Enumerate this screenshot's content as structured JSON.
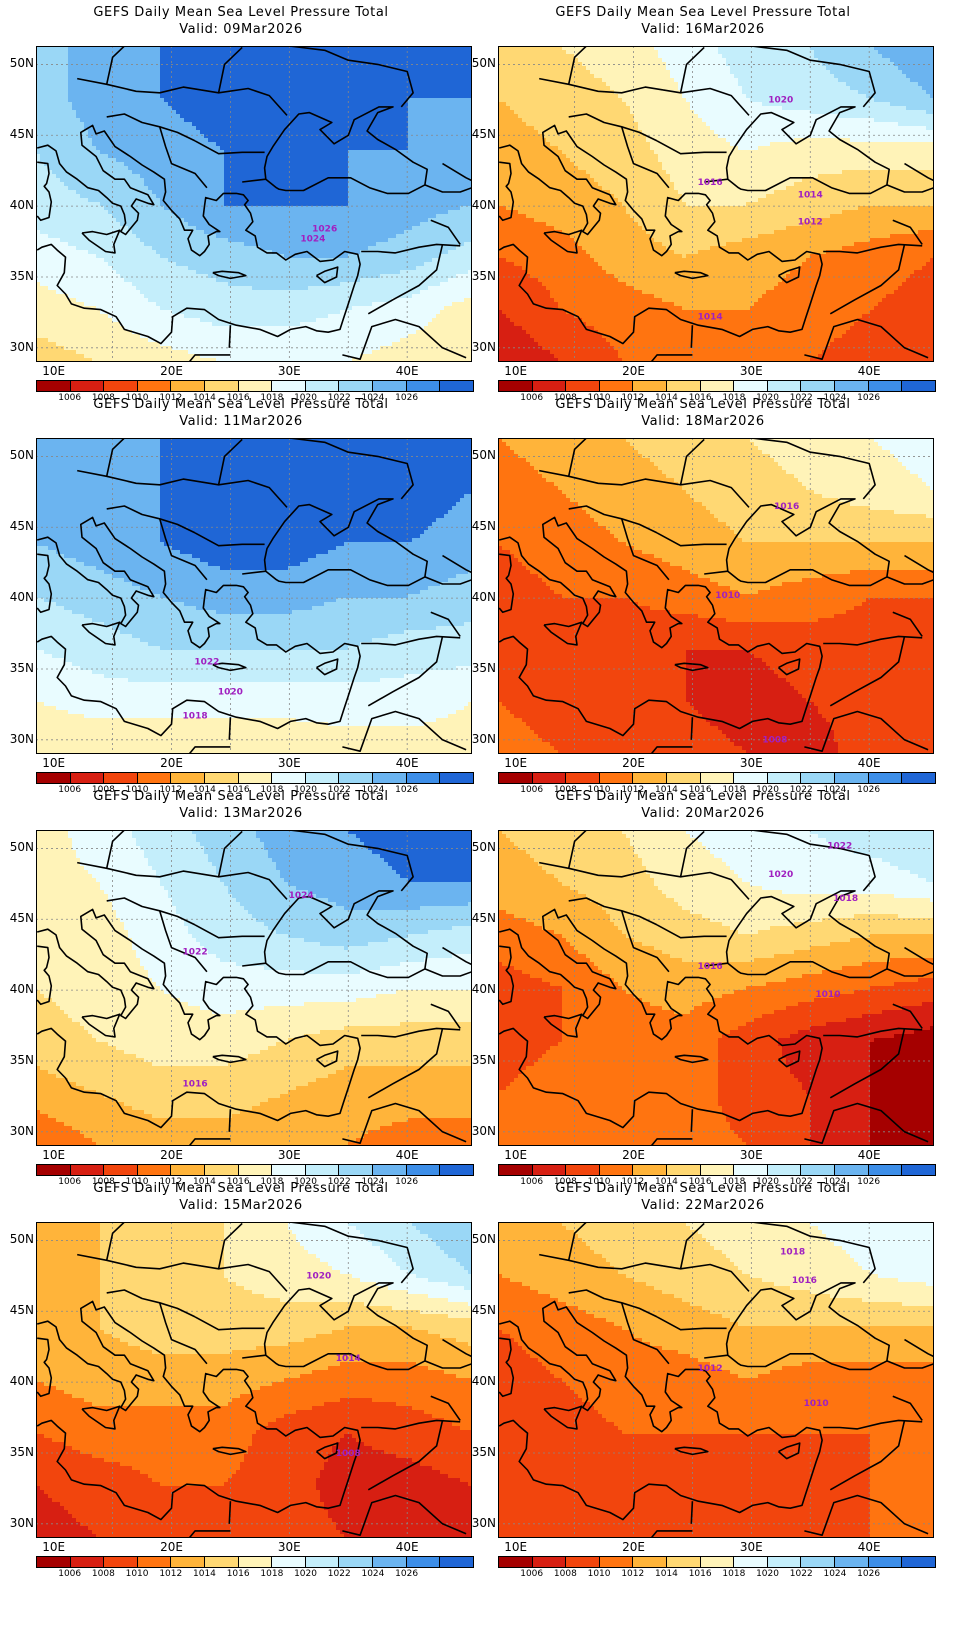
{
  "figure": {
    "title": "GEFS Daily Mean Sea Level Pressure Total",
    "valid_prefix": "Valid:",
    "lat_ticks": [
      "50N",
      "45N",
      "40N",
      "35N",
      "30N"
    ],
    "lon_ticks": [
      "10E",
      "20E",
      "30E",
      "40E"
    ],
    "colorbar_labels": [
      "1006",
      "1008",
      "1010",
      "1012",
      "1014",
      "1016",
      "1018",
      "1020",
      "1022",
      "1024",
      "1026"
    ],
    "colorbar_colors": [
      "#a50000",
      "#d71f12",
      "#f2450d",
      "#ff7410",
      "#ffb43a",
      "#ffd873",
      "#fff3b8",
      "#e9fcff",
      "#c4eefb",
      "#9ad7f6",
      "#6bb4f0",
      "#3d8ee8",
      "#1f66d6"
    ],
    "contour_color": "#a020c0",
    "panels": [
      {
        "valid": "09Mar2026",
        "column": 0,
        "row": 0,
        "field": "high over Balkans and Black Sea, higher north",
        "values": [
          [
            1023,
            1025,
            1026,
            1027,
            1027,
            1027,
            1027,
            1026
          ],
          [
            1023,
            1025,
            1026,
            1027,
            1027,
            1027,
            1026,
            1026
          ],
          [
            1022,
            1024,
            1025,
            1026,
            1026,
            1026,
            1026,
            1025
          ],
          [
            1021,
            1022,
            1024,
            1026,
            1026,
            1026,
            1025,
            1024
          ],
          [
            1019,
            1020,
            1022,
            1023,
            1024,
            1024,
            1023,
            1021
          ],
          [
            1017,
            1018,
            1020,
            1021,
            1021,
            1020,
            1019,
            1017
          ],
          [
            1015,
            1016,
            1017,
            1018,
            1018,
            1018,
            1017,
            1017
          ]
        ],
        "labels": [
          {
            "text": "1026",
            "lon": 33.0,
            "lat": 38.2
          },
          {
            "text": "1024",
            "lon": 32.0,
            "lat": 37.5
          }
        ]
      },
      {
        "valid": "16Mar2026",
        "column": 1,
        "row": 0,
        "field": "low over southeast, high northeast",
        "values": [
          [
            1015,
            1016,
            1017,
            1019,
            1021,
            1022,
            1024,
            1026
          ],
          [
            1014,
            1015,
            1016,
            1018,
            1020,
            1021,
            1022,
            1024
          ],
          [
            1013,
            1014,
            1015,
            1017,
            1018,
            1017,
            1017,
            1017
          ],
          [
            1012,
            1013,
            1014,
            1016,
            1016,
            1015,
            1014,
            1014
          ],
          [
            1010,
            1011,
            1013,
            1014,
            1013,
            1012,
            1011,
            1010
          ],
          [
            1008,
            1010,
            1011,
            1012,
            1012,
            1011,
            1010,
            1009
          ],
          [
            1006,
            1008,
            1010,
            1011,
            1011,
            1010,
            1009,
            1009
          ]
        ],
        "labels": [
          {
            "text": "1020",
            "lon": 32.5,
            "lat": 47.3
          },
          {
            "text": "1016",
            "lon": 26.5,
            "lat": 41.5
          },
          {
            "text": "1014",
            "lon": 35.0,
            "lat": 40.6
          },
          {
            "text": "1012",
            "lon": 35.0,
            "lat": 38.7
          },
          {
            "text": "1014",
            "lon": 26.5,
            "lat": 32.0
          }
        ]
      },
      {
        "valid": "11Mar2026",
        "column": 0,
        "row": 1,
        "field": "strong high over central Europe",
        "values": [
          [
            1024,
            1025,
            1026,
            1027,
            1027,
            1027,
            1027,
            1026
          ],
          [
            1024,
            1025,
            1026,
            1027,
            1028,
            1027,
            1027,
            1026
          ],
          [
            1024,
            1025,
            1026,
            1027,
            1027,
            1026,
            1026,
            1025
          ],
          [
            1022,
            1023,
            1024,
            1025,
            1025,
            1024,
            1024,
            1023
          ],
          [
            1020,
            1021,
            1022,
            1022,
            1022,
            1022,
            1021,
            1021
          ],
          [
            1018,
            1019,
            1019,
            1019,
            1019,
            1019,
            1019,
            1018
          ],
          [
            1016,
            1016,
            1016,
            1016,
            1016,
            1017,
            1017,
            1017
          ]
        ],
        "labels": [
          {
            "text": "1022",
            "lon": 23.0,
            "lat": 35.3
          },
          {
            "text": "1020",
            "lon": 25.0,
            "lat": 33.2
          },
          {
            "text": "1018",
            "lon": 22.0,
            "lat": 31.5
          }
        ]
      },
      {
        "valid": "18Mar2026",
        "column": 1,
        "row": 1,
        "field": "deep low over eastern Mediterranean",
        "values": [
          [
            1012,
            1013,
            1014,
            1015,
            1016,
            1017,
            1018,
            1019
          ],
          [
            1011,
            1012,
            1013,
            1014,
            1015,
            1016,
            1017,
            1018
          ],
          [
            1010,
            1011,
            1012,
            1013,
            1014,
            1014,
            1014,
            1014
          ],
          [
            1009,
            1010,
            1010,
            1011,
            1012,
            1011,
            1010,
            1010
          ],
          [
            1009,
            1009,
            1009,
            1008,
            1008,
            1009,
            1009,
            1009
          ],
          [
            1010,
            1009,
            1009,
            1008,
            1007,
            1008,
            1009,
            1010
          ],
          [
            1011,
            1010,
            1009,
            1009,
            1008,
            1007,
            1009,
            1010
          ]
        ],
        "labels": [
          {
            "text": "1016",
            "lon": 33.0,
            "lat": 46.3
          },
          {
            "text": "1010",
            "lon": 28.0,
            "lat": 40.0
          },
          {
            "text": "1008",
            "lon": 32.0,
            "lat": 29.8
          }
        ]
      },
      {
        "valid": "13Mar2026",
        "column": 0,
        "row": 2,
        "field": "high northeast weakening",
        "values": [
          [
            1017,
            1019,
            1021,
            1023,
            1025,
            1026,
            1027,
            1027
          ],
          [
            1017,
            1018,
            1020,
            1022,
            1024,
            1025,
            1026,
            1026
          ],
          [
            1016,
            1017,
            1019,
            1021,
            1022,
            1023,
            1022,
            1021
          ],
          [
            1016,
            1017,
            1018,
            1019,
            1019,
            1019,
            1018,
            1018
          ],
          [
            1015,
            1016,
            1017,
            1017,
            1016,
            1015,
            1015,
            1015
          ],
          [
            1013,
            1014,
            1015,
            1015,
            1014,
            1013,
            1013,
            1013
          ],
          [
            1010,
            1012,
            1013,
            1013,
            1012,
            1012,
            1011,
            1011
          ]
        ],
        "labels": [
          {
            "text": "1024",
            "lon": 31.0,
            "lat": 46.5
          },
          {
            "text": "1022",
            "lon": 22.0,
            "lat": 42.5
          },
          {
            "text": "1016",
            "lon": 22.0,
            "lat": 33.2
          }
        ]
      },
      {
        "valid": "20Mar2026",
        "column": 1,
        "row": 2,
        "field": "low over Levant, high northeast",
        "values": [
          [
            1014,
            1015,
            1016,
            1018,
            1019,
            1020,
            1021,
            1022
          ],
          [
            1013,
            1014,
            1015,
            1017,
            1018,
            1019,
            1019,
            1020
          ],
          [
            1011,
            1012,
            1014,
            1015,
            1016,
            1015,
            1014,
            1014
          ],
          [
            1009,
            1010,
            1012,
            1013,
            1012,
            1011,
            1010,
            1009
          ],
          [
            1009,
            1010,
            1011,
            1011,
            1009,
            1007,
            1006,
            1005
          ],
          [
            1010,
            1011,
            1011,
            1011,
            1009,
            1008,
            1006,
            1004
          ],
          [
            1011,
            1011,
            1011,
            1011,
            1010,
            1008,
            1006,
            1004
          ]
        ],
        "labels": [
          {
            "text": "1022",
            "lon": 37.5,
            "lat": 50.0
          },
          {
            "text": "1020",
            "lon": 32.5,
            "lat": 48.0
          },
          {
            "text": "1018",
            "lon": 38.0,
            "lat": 46.3
          },
          {
            "text": "1016",
            "lon": 26.5,
            "lat": 41.5
          },
          {
            "text": "1010",
            "lon": 36.5,
            "lat": 39.5
          }
        ]
      },
      {
        "valid": "15Mar2026",
        "column": 0,
        "row": 3,
        "field": "low over Levant",
        "values": [
          [
            1013,
            1014,
            1015,
            1016,
            1018,
            1020,
            1022,
            1024
          ],
          [
            1013,
            1014,
            1015,
            1016,
            1017,
            1018,
            1020,
            1022
          ],
          [
            1013,
            1014,
            1015,
            1015,
            1015,
            1014,
            1014,
            1015
          ],
          [
            1012,
            1013,
            1013,
            1013,
            1012,
            1011,
            1011,
            1012
          ],
          [
            1010,
            1011,
            1011,
            1011,
            1009,
            1008,
            1009,
            1010
          ],
          [
            1008,
            1009,
            1010,
            1010,
            1009,
            1007,
            1007,
            1008
          ],
          [
            1007,
            1008,
            1009,
            1010,
            1009,
            1008,
            1007,
            1007
          ]
        ],
        "labels": [
          {
            "text": "1020",
            "lon": 32.5,
            "lat": 47.3
          },
          {
            "text": "1014",
            "lon": 35.0,
            "lat": 41.5
          },
          {
            "text": "1008",
            "lon": 35.0,
            "lat": 34.8
          }
        ]
      },
      {
        "valid": "22Mar2026",
        "column": 1,
        "row": 3,
        "field": "low over south, weak high north",
        "values": [
          [
            1013,
            1014,
            1015,
            1016,
            1017,
            1018,
            1019,
            1020
          ],
          [
            1012,
            1013,
            1014,
            1015,
            1016,
            1017,
            1018,
            1019
          ],
          [
            1010,
            1011,
            1012,
            1013,
            1014,
            1014,
            1014,
            1014
          ],
          [
            1009,
            1010,
            1011,
            1011,
            1012,
            1011,
            1011,
            1011
          ],
          [
            1009,
            1009,
            1010,
            1010,
            1010,
            1010,
            1010,
            1010
          ],
          [
            1009,
            1009,
            1009,
            1009,
            1009,
            1009,
            1010,
            1010
          ],
          [
            1009,
            1009,
            1009,
            1009,
            1009,
            1009,
            1010,
            1010
          ]
        ],
        "labels": [
          {
            "text": "1018",
            "lon": 33.5,
            "lat": 49.0
          },
          {
            "text": "1016",
            "lon": 34.5,
            "lat": 47.0
          },
          {
            "text": "1012",
            "lon": 26.5,
            "lat": 40.8
          },
          {
            "text": "1010",
            "lon": 35.5,
            "lat": 38.3
          }
        ]
      }
    ]
  }
}
